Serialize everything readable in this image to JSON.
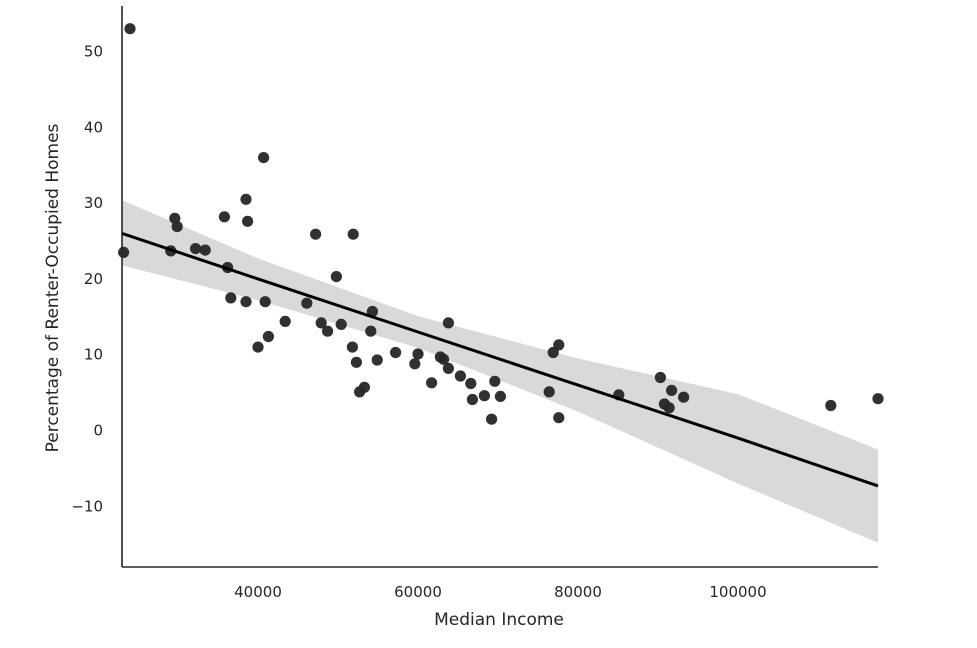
{
  "chart_data": {
    "type": "scatter",
    "title": "",
    "xlabel": "Median Income",
    "ylabel": "Percentage of Renter-Occupied Homes",
    "xlim": [
      23000,
      117500
    ],
    "ylim": [
      -18,
      56
    ],
    "x_ticks": [
      40000,
      60000,
      80000,
      100000
    ],
    "y_ticks": [
      -10,
      0,
      10,
      20,
      30,
      40,
      50
    ],
    "x_tick_labels": [
      "40000",
      "60000",
      "80000",
      "100000"
    ],
    "y_tick_labels": [
      "−10",
      "0",
      "10",
      "20",
      "30",
      "40",
      "50"
    ],
    "grid": false,
    "legend": "none",
    "colors": {
      "points": "#262626",
      "regression_line": "#000000",
      "confidence_band": "#d9d9d9"
    },
    "points": [
      {
        "x": 24000,
        "y": 53.0
      },
      {
        "x": 23200,
        "y": 23.5
      },
      {
        "x": 29100,
        "y": 23.7
      },
      {
        "x": 29600,
        "y": 28.0
      },
      {
        "x": 29900,
        "y": 26.9
      },
      {
        "x": 32200,
        "y": 24.0
      },
      {
        "x": 33400,
        "y": 23.8
      },
      {
        "x": 35800,
        "y": 28.2
      },
      {
        "x": 36200,
        "y": 21.5
      },
      {
        "x": 36600,
        "y": 17.5
      },
      {
        "x": 38500,
        "y": 30.5
      },
      {
        "x": 38700,
        "y": 27.6
      },
      {
        "x": 38500,
        "y": 17.0
      },
      {
        "x": 40000,
        "y": 11.0
      },
      {
        "x": 40700,
        "y": 36.0
      },
      {
        "x": 40900,
        "y": 17.0
      },
      {
        "x": 41300,
        "y": 12.4
      },
      {
        "x": 43400,
        "y": 14.4
      },
      {
        "x": 46100,
        "y": 16.8
      },
      {
        "x": 47200,
        "y": 25.9
      },
      {
        "x": 47900,
        "y": 14.2
      },
      {
        "x": 48700,
        "y": 13.1
      },
      {
        "x": 49800,
        "y": 20.3
      },
      {
        "x": 50400,
        "y": 14.0
      },
      {
        "x": 51900,
        "y": 25.9
      },
      {
        "x": 51800,
        "y": 11.0
      },
      {
        "x": 52300,
        "y": 9.0
      },
      {
        "x": 52700,
        "y": 5.1
      },
      {
        "x": 53300,
        "y": 5.7
      },
      {
        "x": 54100,
        "y": 13.1
      },
      {
        "x": 54300,
        "y": 15.7
      },
      {
        "x": 54900,
        "y": 9.3
      },
      {
        "x": 57200,
        "y": 10.3
      },
      {
        "x": 59600,
        "y": 8.8
      },
      {
        "x": 60000,
        "y": 10.1
      },
      {
        "x": 61700,
        "y": 6.3
      },
      {
        "x": 62800,
        "y": 9.7
      },
      {
        "x": 63200,
        "y": 9.4
      },
      {
        "x": 63800,
        "y": 14.2
      },
      {
        "x": 63800,
        "y": 8.2
      },
      {
        "x": 65300,
        "y": 7.2
      },
      {
        "x": 66600,
        "y": 6.2
      },
      {
        "x": 66800,
        "y": 4.1
      },
      {
        "x": 68300,
        "y": 4.6
      },
      {
        "x": 69200,
        "y": 1.5
      },
      {
        "x": 69600,
        "y": 6.5
      },
      {
        "x": 70300,
        "y": 4.5
      },
      {
        "x": 76400,
        "y": 5.1
      },
      {
        "x": 76900,
        "y": 10.3
      },
      {
        "x": 77600,
        "y": 11.3
      },
      {
        "x": 77600,
        "y": 1.7
      },
      {
        "x": 85100,
        "y": 4.7
      },
      {
        "x": 90300,
        "y": 7.0
      },
      {
        "x": 90800,
        "y": 3.5
      },
      {
        "x": 91400,
        "y": 3.0
      },
      {
        "x": 91700,
        "y": 5.3
      },
      {
        "x": 93200,
        "y": 4.4
      },
      {
        "x": 111600,
        "y": 3.3
      },
      {
        "x": 117500,
        "y": 4.2
      }
    ],
    "regression": {
      "x": [
        23000,
        40000,
        60000,
        80000,
        100000,
        117500
      ],
      "y": [
        26.0,
        20.0,
        13.0,
        6.0,
        -1.0,
        -7.3
      ],
      "ci_lower": [
        21.8,
        17.2,
        10.9,
        2.5,
        -7.0,
        -14.8
      ],
      "ci_upper": [
        30.4,
        22.7,
        15.1,
        9.5,
        4.8,
        -2.5
      ]
    }
  }
}
